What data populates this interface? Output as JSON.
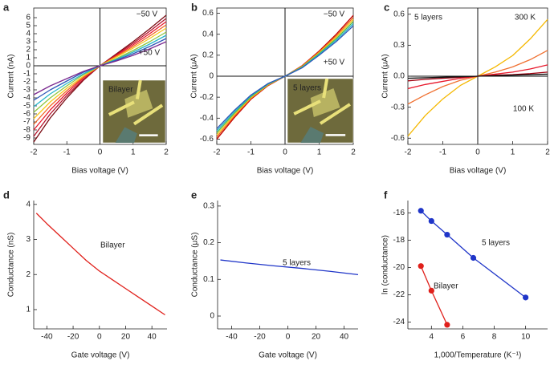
{
  "chart_data": [
    {
      "type": "line",
      "label": "a",
      "x_label": "Bias voltage (V)",
      "y_label": "Current (nA)",
      "frame": "box",
      "zero_lines": true,
      "xlim": [
        -2,
        2
      ],
      "xticks": [
        -2,
        -1,
        0,
        1,
        2
      ],
      "ylim": [
        -9.8,
        7.2
      ],
      "yticks": [
        -9,
        -8,
        -7,
        -6,
        -5,
        -4,
        -3,
        -2,
        -1,
        0,
        1,
        2,
        3,
        4,
        5,
        6
      ],
      "x": [
        -2,
        -1.5,
        -1,
        -0.5,
        0,
        0.5,
        1,
        1.5,
        2
      ],
      "series": [
        {
          "color": "#7a0a12",
          "values": [
            -9.5,
            -6.5,
            -4.0,
            -1.8,
            0,
            1.5,
            3.0,
            4.6,
            6.3
          ]
        },
        {
          "color": "#b3122a",
          "values": [
            -8.8,
            -6.0,
            -3.7,
            -1.7,
            0,
            1.4,
            2.8,
            4.3,
            5.9
          ]
        },
        {
          "color": "#e8192c",
          "values": [
            -8.0,
            -5.5,
            -3.4,
            -1.5,
            0,
            1.3,
            2.6,
            4.0,
            5.5
          ]
        },
        {
          "color": "#f26522",
          "values": [
            -7.3,
            -5.0,
            -3.1,
            -1.4,
            0,
            1.2,
            2.4,
            3.7,
            5.1
          ]
        },
        {
          "color": "#f7c81b",
          "values": [
            -6.6,
            -4.5,
            -2.8,
            -1.3,
            0,
            1.1,
            2.2,
            3.4,
            4.7
          ]
        },
        {
          "color": "#8cc63f",
          "values": [
            -5.8,
            -4.0,
            -2.5,
            -1.1,
            0,
            0.9,
            1.9,
            3.0,
            4.2
          ]
        },
        {
          "color": "#27b5c9",
          "values": [
            -5.1,
            -3.5,
            -2.2,
            -1.0,
            0,
            0.8,
            1.7,
            2.7,
            3.8
          ]
        },
        {
          "color": "#2e57b8",
          "values": [
            -4.3,
            -3.0,
            -1.9,
            -0.8,
            0,
            0.7,
            1.5,
            2.4,
            3.4
          ]
        },
        {
          "color": "#7b2a90",
          "values": [
            -3.6,
            -2.5,
            -1.6,
            -0.7,
            0,
            0.6,
            1.3,
            2.1,
            3.0
          ]
        }
      ],
      "annotations": [
        {
          "text": "−50 V",
          "color": "#7a0a12"
        },
        {
          "text": "+50 V",
          "color": "#111111"
        }
      ],
      "inset_label": "Bilayer"
    },
    {
      "type": "line",
      "label": "b",
      "x_label": "Bias voltage (V)",
      "y_label": "Current (μA)",
      "frame": "box",
      "zero_lines": true,
      "xlim": [
        -2,
        2
      ],
      "xticks": [
        -2,
        -1,
        0,
        1,
        2
      ],
      "ylim": [
        -0.65,
        0.65
      ],
      "yticks": [
        -0.6,
        -0.4,
        -0.2,
        0,
        0.2,
        0.4,
        0.6
      ],
      "x": [
        -2,
        -1.5,
        -1,
        -0.5,
        0,
        0.5,
        1,
        1.5,
        2
      ],
      "series": [
        {
          "color": "#c00000",
          "values": [
            -0.6,
            -0.4,
            -0.22,
            -0.09,
            0,
            0.1,
            0.24,
            0.4,
            0.58
          ]
        },
        {
          "color": "#f26522",
          "values": [
            -0.58,
            -0.386,
            -0.212,
            -0.086,
            0,
            0.096,
            0.232,
            0.386,
            0.56
          ]
        },
        {
          "color": "#f7c81b",
          "values": [
            -0.56,
            -0.372,
            -0.204,
            -0.082,
            0,
            0.092,
            0.224,
            0.372,
            0.54
          ]
        },
        {
          "color": "#57b947",
          "values": [
            -0.54,
            -0.358,
            -0.196,
            -0.078,
            0,
            0.088,
            0.216,
            0.358,
            0.52
          ]
        },
        {
          "color": "#27b5c9",
          "values": [
            -0.52,
            -0.344,
            -0.188,
            -0.074,
            0,
            0.084,
            0.208,
            0.344,
            0.5
          ]
        },
        {
          "color": "#2e57b8",
          "values": [
            -0.5,
            -0.33,
            -0.18,
            -0.07,
            0,
            0.08,
            0.2,
            0.33,
            0.48
          ]
        }
      ],
      "annotations": [
        {
          "text": "−50 V",
          "color": "#7a0a12"
        },
        {
          "text": "+50 V",
          "color": "#a020a0"
        }
      ],
      "inset_label": "5 layers"
    },
    {
      "type": "line",
      "label": "c",
      "x_label": "Bias voltage (V)",
      "y_label": "Current (μA)",
      "frame": "box",
      "zero_lines": true,
      "xlim": [
        -2,
        2
      ],
      "xticks": [
        -2,
        -1,
        0,
        1,
        2
      ],
      "ylim": [
        -0.66,
        0.66
      ],
      "yticks": [
        -0.6,
        -0.3,
        {
          "value": 0,
          "label": "0.0"
        },
        0.3,
        0.6
      ],
      "x": [
        -2,
        -1.5,
        -1,
        -0.5,
        0,
        0.5,
        1,
        1.5,
        2
      ],
      "series": [
        {
          "color": "#f5b800",
          "values": [
            -0.58,
            -0.38,
            -0.22,
            -0.09,
            0,
            0.09,
            0.2,
            0.36,
            0.55
          ]
        },
        {
          "color": "#f07030",
          "values": [
            -0.27,
            -0.18,
            -0.1,
            -0.04,
            0,
            0.04,
            0.09,
            0.16,
            0.25
          ]
        },
        {
          "color": "#e8192c",
          "values": [
            -0.12,
            -0.08,
            -0.05,
            -0.02,
            0,
            0.02,
            0.04,
            0.07,
            0.11
          ]
        },
        {
          "color": "#a00010",
          "values": [
            -0.045,
            -0.03,
            -0.02,
            -0.01,
            0,
            0.01,
            0.015,
            0.025,
            0.04
          ]
        },
        {
          "color": "#111111",
          "values": [
            -0.02,
            -0.015,
            -0.01,
            -0.005,
            0,
            0.005,
            0.01,
            0.015,
            0.02
          ]
        }
      ],
      "annotations": [
        {
          "text": "5 layers",
          "color": "#111111"
        },
        {
          "text": "300 K",
          "color": "#f5b800"
        },
        {
          "text": "100 K",
          "color": "#111111"
        }
      ]
    },
    {
      "type": "line",
      "label": "d",
      "x_label": "Gate voltage (V)",
      "y_label": "Conductance (nS)",
      "frame": "axes",
      "zero_lines": false,
      "xlim": [
        -50,
        51.5
      ],
      "xticks": [
        -40,
        -20,
        0,
        20,
        40
      ],
      "ylim": [
        0.45,
        4.11
      ],
      "yticks": [
        1,
        2,
        3,
        4
      ],
      "x": [
        -48,
        -40,
        -30,
        -20,
        -10,
        0,
        10,
        20,
        30,
        40,
        50
      ],
      "series": [
        {
          "color": "#e0201b",
          "values": [
            3.75,
            3.45,
            3.1,
            2.75,
            2.4,
            2.1,
            1.85,
            1.6,
            1.35,
            1.1,
            0.85
          ]
        }
      ],
      "annotations": [
        {
          "text": "Bilayer",
          "color": "#e0201b"
        }
      ]
    },
    {
      "type": "line",
      "label": "e",
      "x_label": "Gate voltage (V)",
      "y_label": "Conductance (μS)",
      "frame": "axes",
      "zero_lines": false,
      "xlim": [
        -50,
        50
      ],
      "xticks": [
        -40,
        -20,
        0,
        20,
        40
      ],
      "ylim": [
        -0.035,
        0.315
      ],
      "yticks": [
        0,
        0.1,
        0.2,
        0.3
      ],
      "x": [
        -48,
        -30,
        -10,
        10,
        30,
        50
      ],
      "series": [
        {
          "color": "#1f35c8",
          "values": [
            0.153,
            0.145,
            0.137,
            0.13,
            0.122,
            0.113
          ]
        }
      ],
      "annotations": [
        {
          "text": "5 layers",
          "color": "#1f35c8"
        }
      ]
    },
    {
      "type": "scatter",
      "label": "f",
      "x_label": "1,000/Temperature (K⁻¹)",
      "y_label": "ln (conductance)",
      "frame": "axes",
      "zero_lines": false,
      "xlim": [
        2.5,
        11.4
      ],
      "xticks": [
        4,
        6,
        8,
        10
      ],
      "ylim": [
        -24.5,
        -15.1
      ],
      "yticks": [
        -24,
        -22,
        -20,
        -18,
        -16
      ],
      "series": [
        {
          "name": "5 layers",
          "color": "#1f35c8",
          "x": [
            3.33,
            4,
            5,
            6.67,
            10
          ],
          "values": [
            -15.85,
            -16.6,
            -17.6,
            -19.3,
            -22.2
          ]
        },
        {
          "name": "Bilayer",
          "color": "#e0201b",
          "x": [
            3.33,
            4,
            5
          ],
          "values": [
            -19.9,
            -21.7,
            -24.2
          ]
        }
      ]
    }
  ]
}
